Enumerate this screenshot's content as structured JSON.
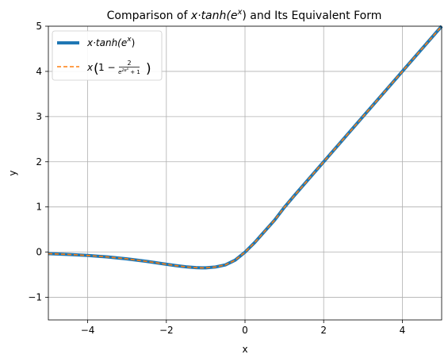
{
  "chart_data": {
    "type": "line",
    "title_prefix": "Comparison of ",
    "title_math": "x·tanh(e",
    "title_sup": "x",
    "title_suffix": ") and Its Equivalent Form",
    "xlabel": "x",
    "ylabel": "y",
    "xlim": [
      -5,
      5
    ],
    "ylim": [
      -1.5,
      5
    ],
    "xticks": [
      -4,
      -2,
      0,
      2,
      4
    ],
    "yticks": [
      -1,
      0,
      1,
      2,
      3,
      4,
      5
    ],
    "xtick_labels": [
      "−4",
      "−2",
      "0",
      "2",
      "4"
    ],
    "ytick_labels": [
      "−1",
      "0",
      "1",
      "2",
      "3",
      "4",
      "5"
    ],
    "grid": true,
    "legend_position": "top-left",
    "series": [
      {
        "name": "x·tanh(e^x)",
        "legend_main": "x·tanh(e",
        "legend_sup": "x",
        "legend_end": ")",
        "color": "#1f77b4",
        "style": "solid",
        "x": [
          -5,
          -4.5,
          -4,
          -3.5,
          -3,
          -2.5,
          -2,
          -1.75,
          -1.5,
          -1.25,
          -1.1,
          -1,
          -0.75,
          -0.5,
          -0.25,
          0,
          0.25,
          0.5,
          0.75,
          1,
          1.25,
          1.5,
          1.75,
          2,
          2.5,
          3,
          3.5,
          4,
          4.5,
          5
        ],
        "y": [
          -0.0337,
          -0.0499,
          -0.0733,
          -0.1057,
          -0.1491,
          -0.2045,
          -0.2686,
          -0.2994,
          -0.3258,
          -0.3431,
          -0.3478,
          -0.3466,
          -0.3285,
          -0.2817,
          -0.1775,
          0,
          0.2162,
          0.4614,
          0.706,
          0.9914,
          1.2475,
          1.4978,
          1.7494,
          1.9997,
          2.5,
          3.0,
          3.5,
          4.0,
          4.5,
          5.0
        ]
      },
      {
        "name": "x(1 − 2/(e^(2e^x)+1))",
        "legend_main": "x",
        "color": "#ff7f0e",
        "style": "dashed",
        "x": [
          -5,
          -4.5,
          -4,
          -3.5,
          -3,
          -2.5,
          -2,
          -1.75,
          -1.5,
          -1.25,
          -1.1,
          -1,
          -0.75,
          -0.5,
          -0.25,
          0,
          0.25,
          0.5,
          0.75,
          1,
          1.25,
          1.5,
          1.75,
          2,
          2.5,
          3,
          3.5,
          4,
          4.5,
          5
        ],
        "y": [
          -0.0337,
          -0.0499,
          -0.0733,
          -0.1057,
          -0.1491,
          -0.2045,
          -0.2686,
          -0.2994,
          -0.3258,
          -0.3431,
          -0.3478,
          -0.3466,
          -0.3285,
          -0.2817,
          -0.1775,
          0,
          0.2162,
          0.4614,
          0.706,
          0.9914,
          1.2475,
          1.4978,
          1.7494,
          1.9997,
          2.5,
          3.0,
          3.5,
          4.0,
          4.5,
          5.0
        ]
      }
    ]
  }
}
